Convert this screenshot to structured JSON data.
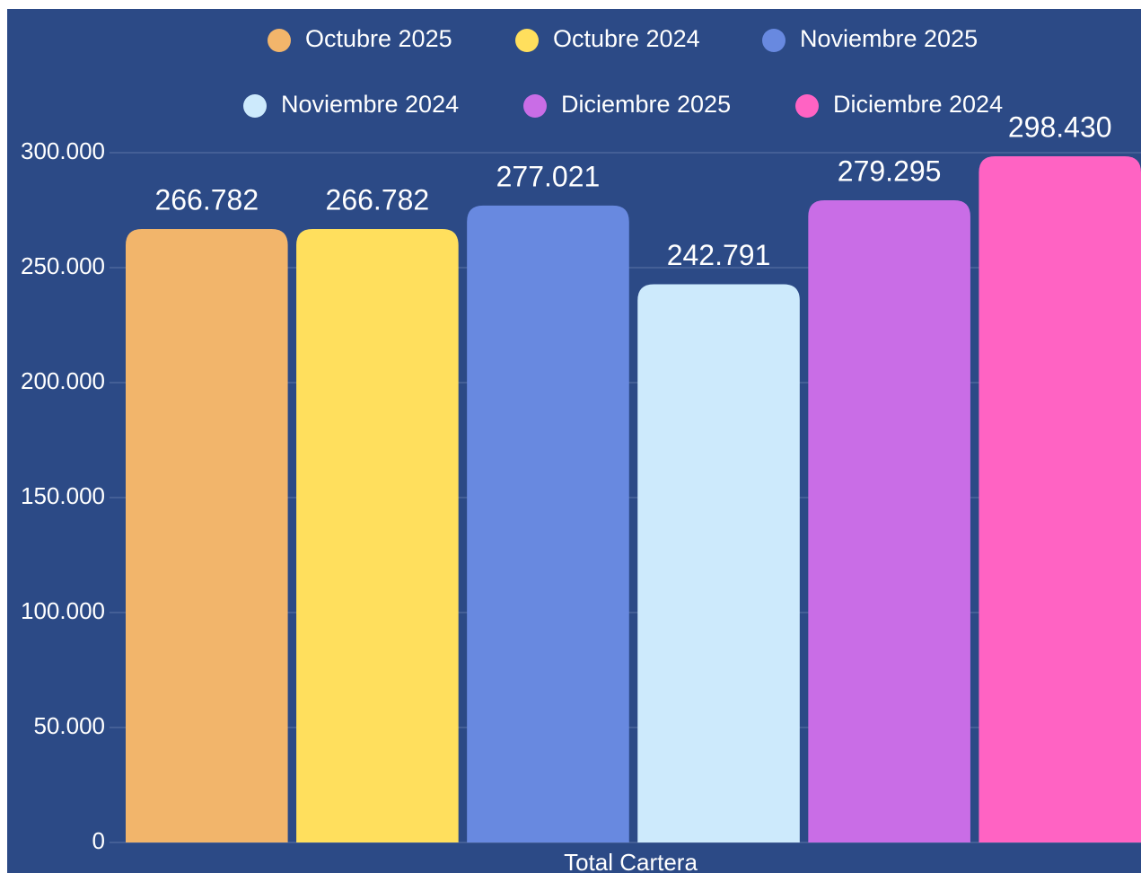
{
  "chart_data": {
    "type": "bar",
    "categories": [
      "Total Cartera"
    ],
    "series": [
      {
        "name": "Octubre 2025",
        "color": "#f2b56b",
        "values": [
          266782
        ],
        "value_labels": [
          "266.782"
        ]
      },
      {
        "name": "Octubre 2024",
        "color": "#ffdf5d",
        "values": [
          266782
        ],
        "value_labels": [
          "266.782"
        ]
      },
      {
        "name": "Noviembre 2025",
        "color": "#6889e0",
        "values": [
          277021
        ],
        "value_labels": [
          "277.021"
        ]
      },
      {
        "name": "Noviembre 2024",
        "color": "#cdeafc",
        "values": [
          242791
        ],
        "value_labels": [
          "242.791"
        ]
      },
      {
        "name": "Diciembre 2025",
        "color": "#c96de6",
        "values": [
          279295
        ],
        "value_labels": [
          "279.295"
        ]
      },
      {
        "name": "Diciembre 2024",
        "color": "#ff63c3",
        "values": [
          298430
        ],
        "value_labels": [
          "298.430"
        ]
      }
    ],
    "ylim": [
      0,
      300000
    ],
    "yticks": [
      0,
      {
        "value": 50000,
        "label": "50.000"
      },
      {
        "value": 100000,
        "label": "100.000"
      },
      {
        "value": 150000,
        "label": "150.000"
      },
      {
        "value": 200000,
        "label": "200.000"
      },
      {
        "value": 250000,
        "label": "250.000"
      },
      {
        "value": 300000,
        "label": "300.000"
      }
    ],
    "grid": true
  }
}
